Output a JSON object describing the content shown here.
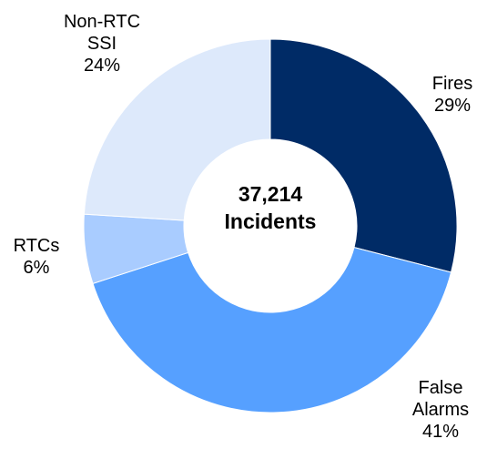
{
  "chart_data": {
    "type": "donut",
    "categories": [
      "Fires",
      "False Alarms",
      "RTCs",
      "Non-RTC SSI"
    ],
    "values": [
      29,
      41,
      6,
      24
    ],
    "value_labels": [
      "29%",
      "41%",
      "6%",
      "24%"
    ],
    "colors": [
      "#002b66",
      "#56a0ff",
      "#a9ccff",
      "#dde9fb"
    ],
    "center_text": [
      "37,214",
      "Incidents"
    ]
  }
}
